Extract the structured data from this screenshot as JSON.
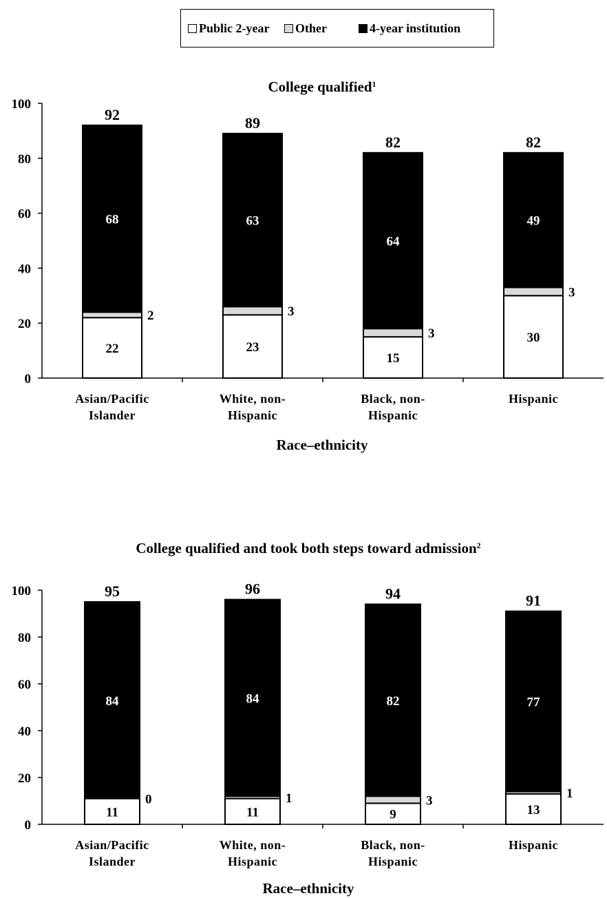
{
  "legend": {
    "items": [
      {
        "label": "Public 2-year",
        "color": "#ffffff"
      },
      {
        "label": "Other",
        "color": "#d9d9d9"
      },
      {
        "label": "4-year institution",
        "color": "#000000"
      }
    ]
  },
  "chart_data": [
    {
      "type": "bar",
      "stacked": true,
      "title": "College qualified",
      "title_footnote": "1",
      "xlabel": "Race–ethnicity",
      "ylabel": "",
      "ylim": [
        0,
        100
      ],
      "yticks": [
        0,
        20,
        40,
        60,
        80,
        100
      ],
      "categories": [
        [
          "Asian/Pacific",
          "Islander"
        ],
        [
          "White, non-",
          "Hispanic"
        ],
        [
          "Black, non-",
          "Hispanic"
        ],
        [
          "Hispanic"
        ]
      ],
      "series": [
        {
          "name": "Public 2-year",
          "values": [
            22,
            23,
            15,
            30
          ]
        },
        {
          "name": "Other",
          "values": [
            2,
            3,
            3,
            3
          ]
        },
        {
          "name": "4-year institution",
          "values": [
            68,
            63,
            64,
            49
          ]
        }
      ],
      "totals": [
        92,
        89,
        82,
        82
      ],
      "grid": false,
      "legend": "top-center"
    },
    {
      "type": "bar",
      "stacked": true,
      "title": "College qualified and took both steps toward admission",
      "title_footnote": "2",
      "xlabel": "Race–ethnicity",
      "ylabel": "",
      "ylim": [
        0,
        100
      ],
      "yticks": [
        0,
        20,
        40,
        60,
        80,
        100
      ],
      "categories": [
        [
          "Asian/Pacific",
          "Islander"
        ],
        [
          "White, non-",
          "Hispanic"
        ],
        [
          "Black, non-",
          "Hispanic"
        ],
        [
          "Hispanic"
        ]
      ],
      "series": [
        {
          "name": "Public 2-year",
          "values": [
            11,
            11,
            9,
            13
          ]
        },
        {
          "name": "Other",
          "values": [
            0,
            1,
            3,
            1
          ]
        },
        {
          "name": "4-year institution",
          "values": [
            84,
            84,
            82,
            77
          ]
        }
      ],
      "totals": [
        95,
        96,
        94,
        91
      ],
      "grid": false,
      "legend": "top-center"
    }
  ]
}
